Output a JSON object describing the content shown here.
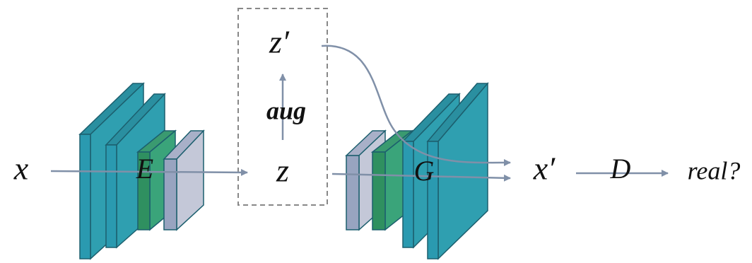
{
  "labels": {
    "input": "x",
    "encoder": "E",
    "latent": "z",
    "augmented_latent": "z′",
    "augmentation": "aug",
    "generator": "G",
    "output": "x′",
    "discriminator": "D",
    "decision": "real?"
  }
}
